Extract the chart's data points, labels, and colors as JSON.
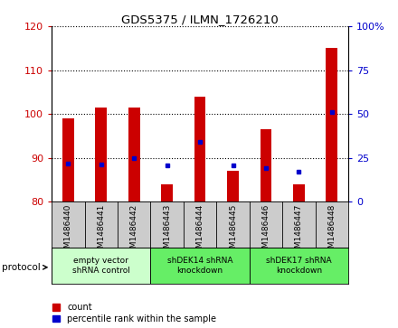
{
  "title": "GDS5375 / ILMN_1726210",
  "samples": [
    "GSM1486440",
    "GSM1486441",
    "GSM1486442",
    "GSM1486443",
    "GSM1486444",
    "GSM1486445",
    "GSM1486446",
    "GSM1486447",
    "GSM1486448"
  ],
  "counts": [
    99,
    101.5,
    101.5,
    84,
    104,
    87,
    96.5,
    84,
    115
  ],
  "percentile_ranks": [
    22,
    21,
    25,
    20.5,
    34,
    20.5,
    19,
    17,
    51
  ],
  "ylim_left": [
    80,
    120
  ],
  "ylim_right": [
    0,
    100
  ],
  "yticks_left": [
    80,
    90,
    100,
    110,
    120
  ],
  "yticks_right": [
    0,
    25,
    50,
    75,
    100
  ],
  "bar_color": "#cc0000",
  "percentile_color": "#0000cc",
  "bar_bottom": 80,
  "protocols": [
    {
      "label": "empty vector\nshRNA control",
      "start": 0,
      "end": 3,
      "color": "#ccffcc"
    },
    {
      "label": "shDEK14 shRNA\nknockdown",
      "start": 3,
      "end": 6,
      "color": "#66ee66"
    },
    {
      "label": "shDEK17 shRNA\nknockdown",
      "start": 6,
      "end": 9,
      "color": "#66ee66"
    }
  ],
  "legend_count_label": "count",
  "legend_percentile_label": "percentile rank within the sample",
  "protocol_label": "protocol",
  "tick_label_color_left": "#cc0000",
  "tick_label_color_right": "#0000cc",
  "sample_box_color": "#cccccc",
  "bar_width": 0.35
}
